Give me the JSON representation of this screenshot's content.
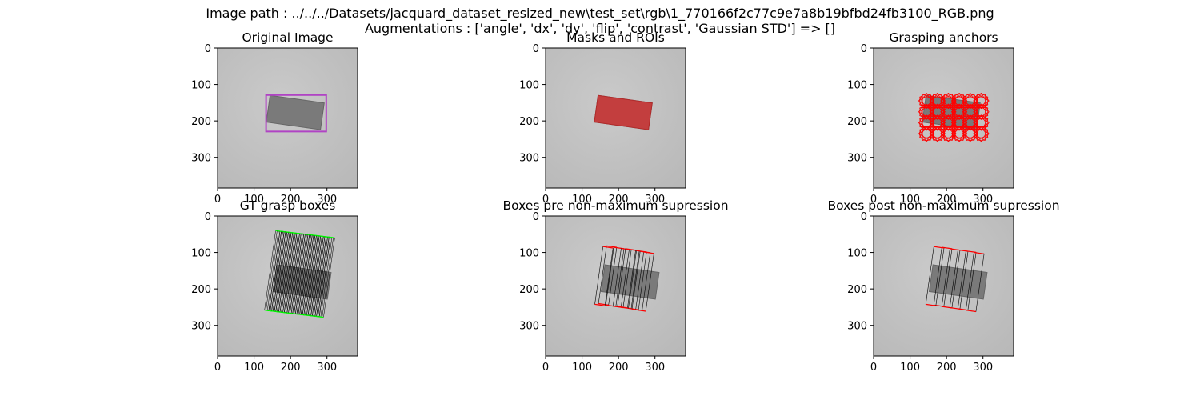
{
  "figure": {
    "suptitle_line1": "Image path : ../../../Datasets/jacquard_dataset_resized_new\\test_set\\rgb\\1_770166f2c77c9e7a8b19bfbd24fb3100_RGB.png",
    "suptitle_line2": "Augmentations : ['angle', 'dx', 'dy', 'flip', 'contrast', 'Gaussian STD'] => []"
  },
  "colors": {
    "background": "#c4c4c4",
    "object": "#7a7a7a",
    "roi_box": "#b043c4",
    "mask": "#d03434",
    "anchor": "#ff0000",
    "gt_box": "#00ff00",
    "pred_box": "#ff0000",
    "thin_line": "#000000"
  },
  "chart_data": [
    {
      "type": "image",
      "title": "Original Image",
      "xlim": [
        0,
        384
      ],
      "ylim": [
        384,
        0
      ],
      "xticks": [
        0,
        100,
        200,
        300
      ],
      "yticks": [
        0,
        100,
        200,
        300
      ],
      "overlay": "roi-rectangle",
      "roi": {
        "x0": 133,
        "y0": 129,
        "x1": 298,
        "y1": 229
      }
    },
    {
      "type": "image",
      "title": "Masks and ROIs",
      "xlim": [
        0,
        384
      ],
      "ylim": [
        384,
        0
      ],
      "xticks": [
        0,
        100,
        200,
        300
      ],
      "yticks": [
        0,
        100,
        200,
        300
      ],
      "overlay": "mask"
    },
    {
      "type": "image",
      "title": "Grasping anchors",
      "xlim": [
        0,
        384
      ],
      "ylim": [
        384,
        0
      ],
      "xticks": [
        0,
        100,
        200,
        300
      ],
      "yticks": [
        0,
        100,
        200,
        300
      ],
      "overlay": "anchors"
    },
    {
      "type": "image",
      "title": "GT grasp boxes",
      "xlim": [
        0,
        384
      ],
      "ylim": [
        384,
        0
      ],
      "xticks": [
        0,
        100,
        200,
        300
      ],
      "yticks": [
        0,
        100,
        200,
        300
      ],
      "overlay": "gt-boxes"
    },
    {
      "type": "image",
      "title": "Boxes pre non-maximum supression",
      "xlim": [
        0,
        384
      ],
      "ylim": [
        384,
        0
      ],
      "xticks": [
        0,
        100,
        200,
        300
      ],
      "yticks": [
        0,
        100,
        200,
        300
      ],
      "overlay": "pre-nms-boxes"
    },
    {
      "type": "image",
      "title": "Boxes post non-maximum supression",
      "xlim": [
        0,
        384
      ],
      "ylim": [
        384,
        0
      ],
      "xticks": [
        0,
        100,
        200,
        300
      ],
      "yticks": [
        0,
        100,
        200,
        300
      ],
      "overlay": "post-nms-boxes"
    }
  ]
}
